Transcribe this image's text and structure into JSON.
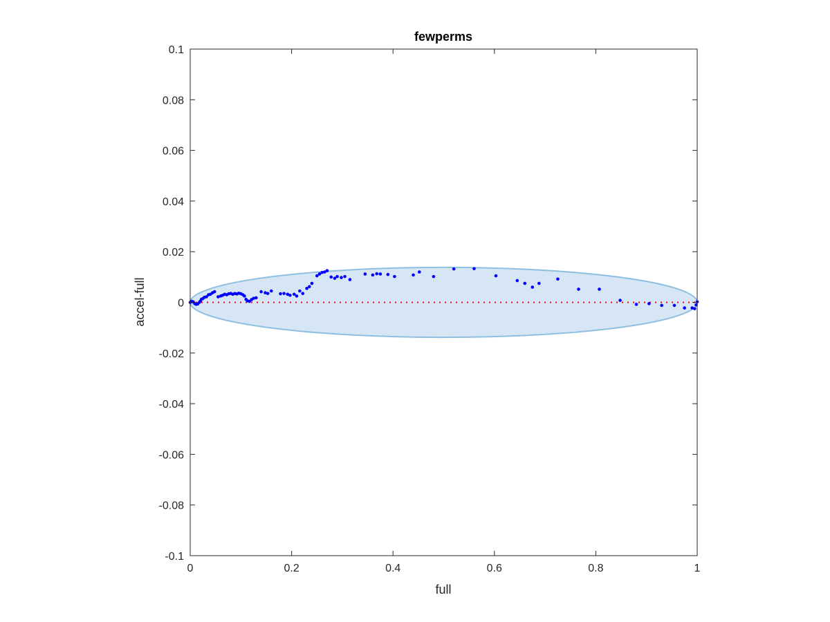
{
  "chart_data": {
    "type": "scatter",
    "title": "fewperms",
    "xlabel": "full",
    "ylabel": "accel-full",
    "xlim": [
      0,
      1
    ],
    "ylim": [
      -0.1,
      0.1
    ],
    "xticks": [
      "0",
      "0.2",
      "0.4",
      "0.6",
      "0.8",
      "1"
    ],
    "yticks": [
      "0.1",
      "0.08",
      "0.06",
      "0.04",
      "0.02",
      "0",
      "-0.02",
      "-0.04",
      "-0.06",
      "-0.08",
      "-0.1"
    ],
    "grid": false,
    "legend": "none",
    "zero_line": {
      "y": 0,
      "color": "#ff0000",
      "style": "dotted"
    },
    "ellipse": {
      "cx": 0.5,
      "cy": 0,
      "rx": 0.5,
      "ry": 0.0138,
      "fill": "#d6e6f4",
      "stroke": "#8fbfe0"
    },
    "series": [
      {
        "color": "#0000ff",
        "points": [
          [
            0.0,
            0.0
          ],
          [
            0.003,
            0.0004
          ],
          [
            0.006,
            0.0002
          ],
          [
            0.009,
            -0.0005
          ],
          [
            0.012,
            -0.0008
          ],
          [
            0.015,
            -0.0006
          ],
          [
            0.018,
            0.0
          ],
          [
            0.02,
            0.0005
          ],
          [
            0.022,
            0.0012
          ],
          [
            0.025,
            0.0015
          ],
          [
            0.028,
            0.002
          ],
          [
            0.032,
            0.0022
          ],
          [
            0.036,
            0.003
          ],
          [
            0.04,
            0.0032
          ],
          [
            0.044,
            0.0038
          ],
          [
            0.048,
            0.0042
          ],
          [
            0.055,
            0.0022
          ],
          [
            0.06,
            0.0025
          ],
          [
            0.064,
            0.0028
          ],
          [
            0.068,
            0.0032
          ],
          [
            0.072,
            0.003
          ],
          [
            0.076,
            0.0034
          ],
          [
            0.08,
            0.0035
          ],
          [
            0.084,
            0.0032
          ],
          [
            0.088,
            0.0035
          ],
          [
            0.092,
            0.0033
          ],
          [
            0.096,
            0.0036
          ],
          [
            0.1,
            0.0034
          ],
          [
            0.104,
            0.003
          ],
          [
            0.107,
            0.0025
          ],
          [
            0.11,
            0.0012
          ],
          [
            0.113,
            0.0006
          ],
          [
            0.117,
            0.0004
          ],
          [
            0.121,
            0.0011
          ],
          [
            0.125,
            0.0016
          ],
          [
            0.13,
            0.0018
          ],
          [
            0.14,
            0.0042
          ],
          [
            0.148,
            0.0038
          ],
          [
            0.153,
            0.0035
          ],
          [
            0.16,
            0.0045
          ],
          [
            0.178,
            0.0034
          ],
          [
            0.185,
            0.0035
          ],
          [
            0.192,
            0.0032
          ],
          [
            0.197,
            0.0028
          ],
          [
            0.205,
            0.0032
          ],
          [
            0.21,
            0.0025
          ],
          [
            0.216,
            0.0045
          ],
          [
            0.222,
            0.0035
          ],
          [
            0.23,
            0.0055
          ],
          [
            0.235,
            0.0062
          ],
          [
            0.24,
            0.0075
          ],
          [
            0.25,
            0.0105
          ],
          [
            0.255,
            0.0112
          ],
          [
            0.26,
            0.0118
          ],
          [
            0.265,
            0.012
          ],
          [
            0.27,
            0.0125
          ],
          [
            0.278,
            0.01
          ],
          [
            0.285,
            0.0095
          ],
          [
            0.29,
            0.0102
          ],
          [
            0.298,
            0.0098
          ],
          [
            0.305,
            0.0102
          ],
          [
            0.315,
            0.009
          ],
          [
            0.345,
            0.0112
          ],
          [
            0.36,
            0.0108
          ],
          [
            0.368,
            0.0113
          ],
          [
            0.375,
            0.0112
          ],
          [
            0.39,
            0.011
          ],
          [
            0.403,
            0.0102
          ],
          [
            0.44,
            0.0108
          ],
          [
            0.452,
            0.012
          ],
          [
            0.48,
            0.0102
          ],
          [
            0.52,
            0.0132
          ],
          [
            0.56,
            0.0133
          ],
          [
            0.603,
            0.0105
          ],
          [
            0.645,
            0.0086
          ],
          [
            0.66,
            0.0075
          ],
          [
            0.675,
            0.006
          ],
          [
            0.688,
            0.0075
          ],
          [
            0.725,
            0.0092
          ],
          [
            0.766,
            0.0052
          ],
          [
            0.807,
            0.0052
          ],
          [
            0.848,
            0.0008
          ],
          [
            0.88,
            -0.0008
          ],
          [
            0.905,
            -0.0005
          ],
          [
            0.93,
            -0.0012
          ],
          [
            0.955,
            -0.0012
          ],
          [
            0.975,
            -0.0022
          ],
          [
            0.99,
            -0.0022
          ],
          [
            0.995,
            -0.0025
          ],
          [
            1.0,
            0.0002
          ],
          [
            0.998,
            -0.001
          ]
        ]
      }
    ]
  }
}
